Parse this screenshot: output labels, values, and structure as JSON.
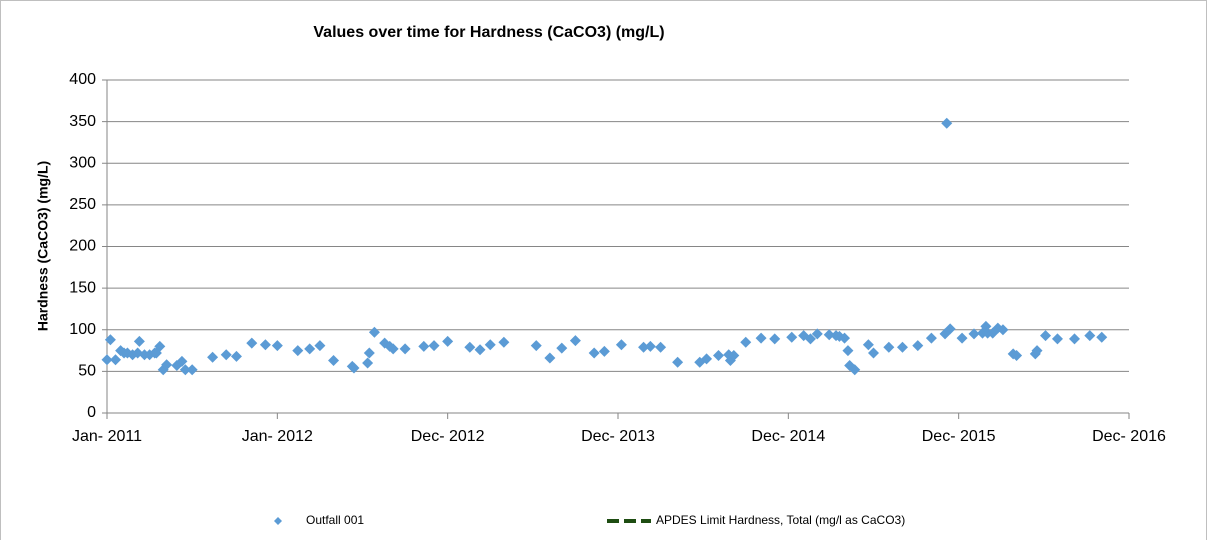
{
  "chart_data": {
    "type": "scatter",
    "title": "Values over time for Hardness (CaCO3) (mg/L)",
    "y_label": "Hardness (CaCO3) (mg/L)",
    "xlim": [
      0,
      6
    ],
    "xticks": [
      {
        "value": 0,
        "label": "Jan- 2011"
      },
      {
        "value": 1,
        "label": "Jan- 2012"
      },
      {
        "value": 2,
        "label": "Dec- 2012"
      },
      {
        "value": 3,
        "label": "Dec- 2013"
      },
      {
        "value": 4,
        "label": "Dec- 2014"
      },
      {
        "value": 5,
        "label": "Dec- 2015"
      },
      {
        "value": 6,
        "label": "Dec- 2016"
      }
    ],
    "ylim": [
      0,
      400
    ],
    "yticks": [
      0,
      50,
      100,
      150,
      200,
      250,
      300,
      350,
      400
    ],
    "grid": true,
    "legend": "bottom",
    "series": [
      {
        "name": "Outfall 001",
        "color": "#5b9bd5",
        "marker": "diamond",
        "x": [
          0,
          0.02,
          0.05,
          0.08,
          0.1,
          0.12,
          0.15,
          0.18,
          0.19,
          0.22,
          0.25,
          0.28,
          0.29,
          0.31,
          0.33,
          0.35,
          0.41,
          0.44,
          0.46,
          0.5,
          0.62,
          0.7,
          0.76,
          0.85,
          0.93,
          1.0,
          1.12,
          1.19,
          1.25,
          1.33,
          1.44,
          1.45,
          1.53,
          1.54,
          1.57,
          1.63,
          1.66,
          1.68,
          1.75,
          1.86,
          1.92,
          2.0,
          2.13,
          2.19,
          2.25,
          2.33,
          2.52,
          2.6,
          2.67,
          2.75,
          2.86,
          2.92,
          3.02,
          3.15,
          3.19,
          3.25,
          3.35,
          3.48,
          3.52,
          3.59,
          3.65,
          3.66,
          3.68,
          3.75,
          3.84,
          3.92,
          4.02,
          4.09,
          4.13,
          4.17,
          4.24,
          4.28,
          4.3,
          4.33,
          4.35,
          4.36,
          4.39,
          4.47,
          4.5,
          4.59,
          4.67,
          4.76,
          4.84,
          4.92,
          4.93,
          4.95,
          5.02,
          5.09,
          5.14,
          5.16,
          5.17,
          5.2,
          5.23,
          5.26,
          5.32,
          5.34,
          5.45,
          5.46,
          5.51,
          5.58,
          5.68,
          5.77,
          5.84
        ],
        "values": [
          64,
          88,
          64,
          75,
          72,
          72,
          70,
          72,
          86,
          70,
          70,
          72,
          72,
          80,
          52,
          58,
          57,
          62,
          52,
          52,
          67,
          70,
          68,
          84,
          82,
          81,
          75,
          77,
          81,
          63,
          56,
          54,
          60,
          72,
          97,
          84,
          80,
          77,
          77,
          80,
          81,
          86,
          79,
          76,
          82,
          85,
          81,
          66,
          78,
          87,
          72,
          74,
          82,
          79,
          80,
          79,
          61,
          61,
          65,
          69,
          70,
          63,
          69,
          85,
          90,
          89,
          91,
          93,
          89,
          95,
          94,
          93,
          92,
          90,
          75,
          57,
          52,
          82,
          72,
          79,
          79,
          81,
          90,
          95,
          348,
          101,
          90,
          95,
          96,
          104,
          96,
          96,
          102,
          100,
          71,
          69,
          71,
          75,
          93,
          89,
          89,
          93,
          91
        ]
      },
      {
        "name": "APDES Limit Hardness, Total (mg/l as CaCO3)",
        "color": "#1e4d12",
        "marker": "dashed-line",
        "x": [],
        "values": []
      }
    ]
  }
}
